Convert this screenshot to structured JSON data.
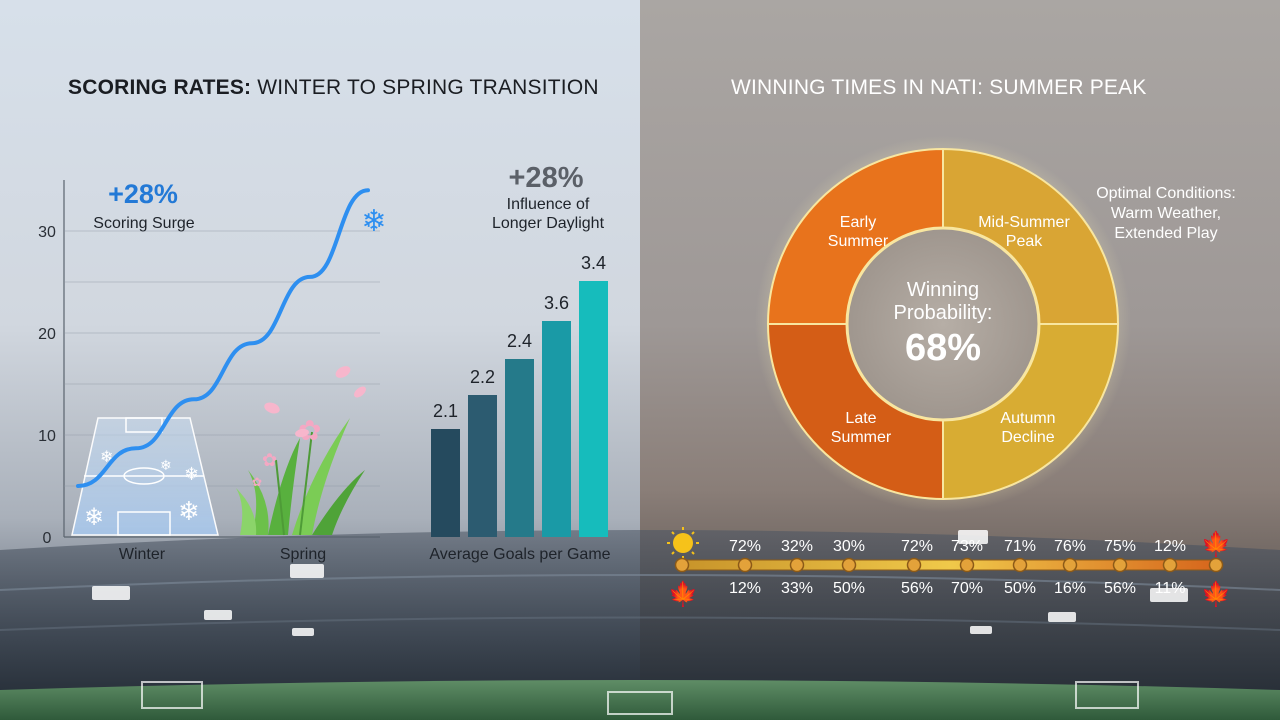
{
  "left_panel": {
    "title_bold": "SCORING RATES:",
    "title_rest": " WINTER TO SPRING TRANSITION",
    "surge_value": "+28%",
    "surge_label": "Scoring Surge",
    "influence_value": "+28%",
    "influence_line1": "Influence of",
    "influence_line2": "Longer Daylight"
  },
  "right_panel": {
    "title": "WINNING TIMES IN NATI: SUMMER PEAK",
    "center_line1": "Winning",
    "center_line2": "Probability:",
    "center_value": "68%",
    "note_line1": "Optimal Conditions:",
    "note_line2": "Warm Weather,",
    "note_line3": "Extended Play"
  },
  "chart_data": [
    {
      "type": "line",
      "title": "SCORING RATES: WINTER TO SPRING TRANSITION",
      "categories": [
        "Winter",
        "Spring"
      ],
      "yticks": [
        0,
        10,
        20,
        30
      ],
      "ylim": [
        0,
        35
      ],
      "series": [
        {
          "points": [
            [
              0,
              5
            ],
            [
              0.4,
              8.7
            ],
            [
              0.8,
              13.5
            ],
            [
              1.2,
              19
            ],
            [
              1.6,
              25.5
            ],
            [
              2.0,
              34
            ]
          ]
        }
      ],
      "color": "#2e8ff0",
      "grid": true
    },
    {
      "type": "bar",
      "xlabel": "Average Goals per Game",
      "values": [
        2.1,
        2.2,
        2.4,
        3.6,
        3.4
      ],
      "data_labels": [
        "2.1",
        "2.2",
        "2.4",
        "3.6",
        "3.4"
      ],
      "colors": [
        "#254a5e",
        "#2c5b70",
        "#257a8a",
        "#1a9aa6",
        "#16bcbc"
      ]
    },
    {
      "type": "pie",
      "title": "WINNING TIMES IN NATI: SUMMER PEAK",
      "slices": [
        {
          "label": "Early Summer",
          "value": 25,
          "color": "#e8731c"
        },
        {
          "label": "Mid-Summer Peak",
          "value": 25,
          "color": "#d9a534"
        },
        {
          "label": "Autumn Decline",
          "value": 25,
          "color": "#d8ac33"
        },
        {
          "label": "Late Summer",
          "value": 25,
          "color": "#d45d16"
        }
      ],
      "center_value": "68%"
    },
    {
      "type": "table",
      "top_row": [
        "72%",
        "32%",
        "30%",
        "72%",
        "73%",
        "71%",
        "76%",
        "75%",
        "12%"
      ],
      "bottom_row": [
        "12%",
        "33%",
        "50%",
        "56%",
        "70%",
        "50%",
        "16%",
        "56%",
        "11%"
      ],
      "markers": 11
    }
  ]
}
